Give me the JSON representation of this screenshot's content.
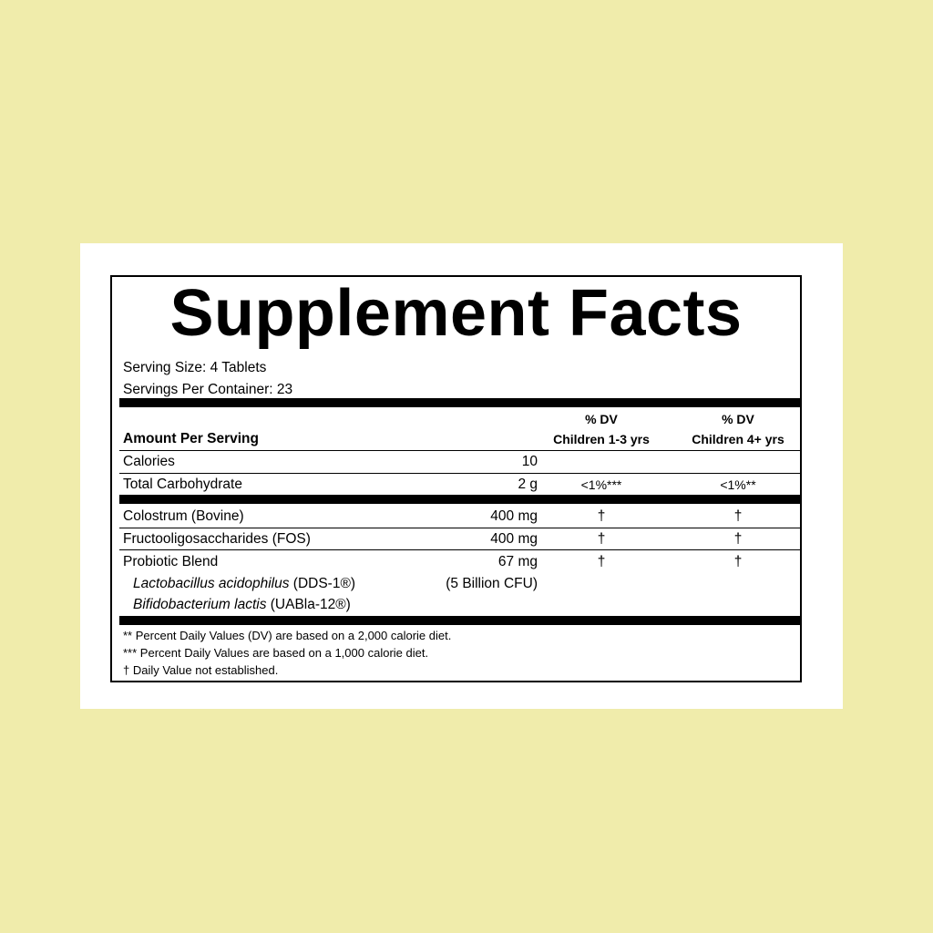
{
  "title": "Supplement Facts",
  "serving_size": "Serving Size: 4 Tablets",
  "servings_per_container": "Servings Per Container: 23",
  "header": {
    "amount": "Amount Per Serving",
    "col1_line1": "% DV",
    "col1_line2": "Children 1-3 yrs",
    "col2_line1": "% DV",
    "col2_line2": "Children 4+ yrs"
  },
  "rows": [
    {
      "name": "Calories",
      "amount": "10",
      "dv1": "",
      "dv2": ""
    },
    {
      "name": "Total Carbohydrate",
      "amount": "2 g",
      "dv1": "<1%***",
      "dv2": "<1%**"
    },
    {
      "name": "Colostrum (Bovine)",
      "amount": "400 mg",
      "dv1": "†",
      "dv2": "†"
    },
    {
      "name": "Fructooligosaccharides (FOS)",
      "amount": "400 mg",
      "dv1": "†",
      "dv2": "†"
    },
    {
      "name": "Probiotic Blend",
      "amount": "67 mg",
      "dv1": "†",
      "dv2": "†"
    }
  ],
  "blend": [
    {
      "species": "Lactobacillus acidophilus",
      "strain": "(DDS-1®)",
      "amount": "(5 Billion CFU)"
    },
    {
      "species": "Bifidobacterium lactis",
      "strain": "(UABla-12®)"
    }
  ],
  "footnotes": [
    "** Percent Daily Values (DV) are based on a 2,000 calorie diet.",
    "*** Percent Daily Values are based on a 1,000 calorie diet.",
    "† Daily Value not established."
  ]
}
